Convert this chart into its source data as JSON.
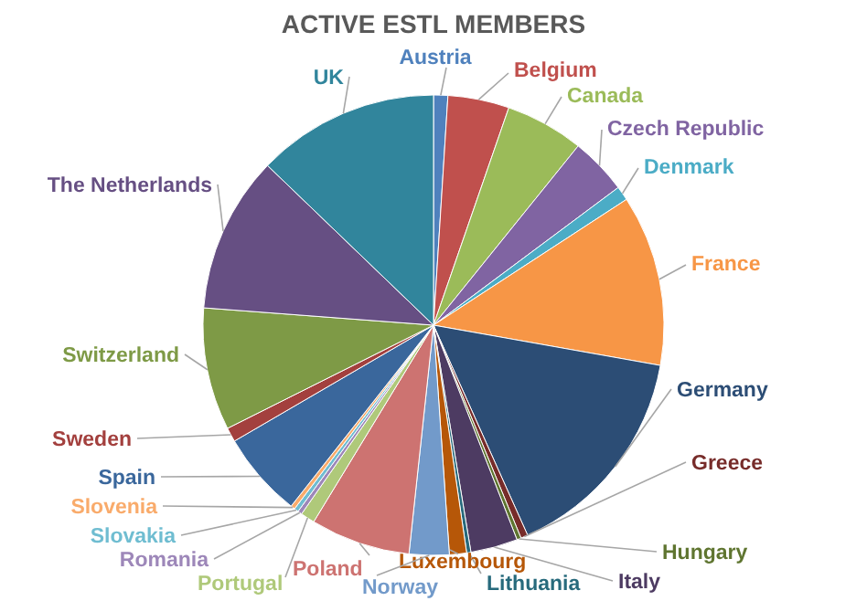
{
  "chart_data": {
    "type": "pie",
    "title": "ACTIVE ESTL MEMBERS",
    "categories": [
      "Austria",
      "Belgium",
      "Canada",
      "Czech Republic",
      "Denmark",
      "France",
      "Germany",
      "Greece",
      "Hungary",
      "Italy",
      "Lithuania",
      "Luxembourg",
      "Norway",
      "Poland",
      "Portugal",
      "Romania",
      "Slovakia",
      "Slovenia",
      "Spain",
      "Sweden",
      "Switzerland",
      "The Netherlands",
      "UK"
    ],
    "values": [
      1,
      4.3,
      5.5,
      4,
      1,
      12,
      15.5,
      0.5,
      0.3,
      3.3,
      0.3,
      1.2,
      2.8,
      7,
      1,
      0.3,
      0.3,
      0.3,
      6,
      1,
      8.6,
      11,
      12.8
    ],
    "colors": [
      "#4f81bd",
      "#c0504d",
      "#9bbb59",
      "#8064a2",
      "#4bacc6",
      "#f79646",
      "#2c4d75",
      "#772c2a",
      "#5f7530",
      "#4d3b62",
      "#276a7c",
      "#b65708",
      "#729aca",
      "#cd7371",
      "#afc97a",
      "#9d87b9",
      "#6fbdd1",
      "#f9ab6b",
      "#3a679c",
      "#a3403e",
      "#7e9a46",
      "#664f83",
      "#31859c"
    ],
    "legend": false
  }
}
